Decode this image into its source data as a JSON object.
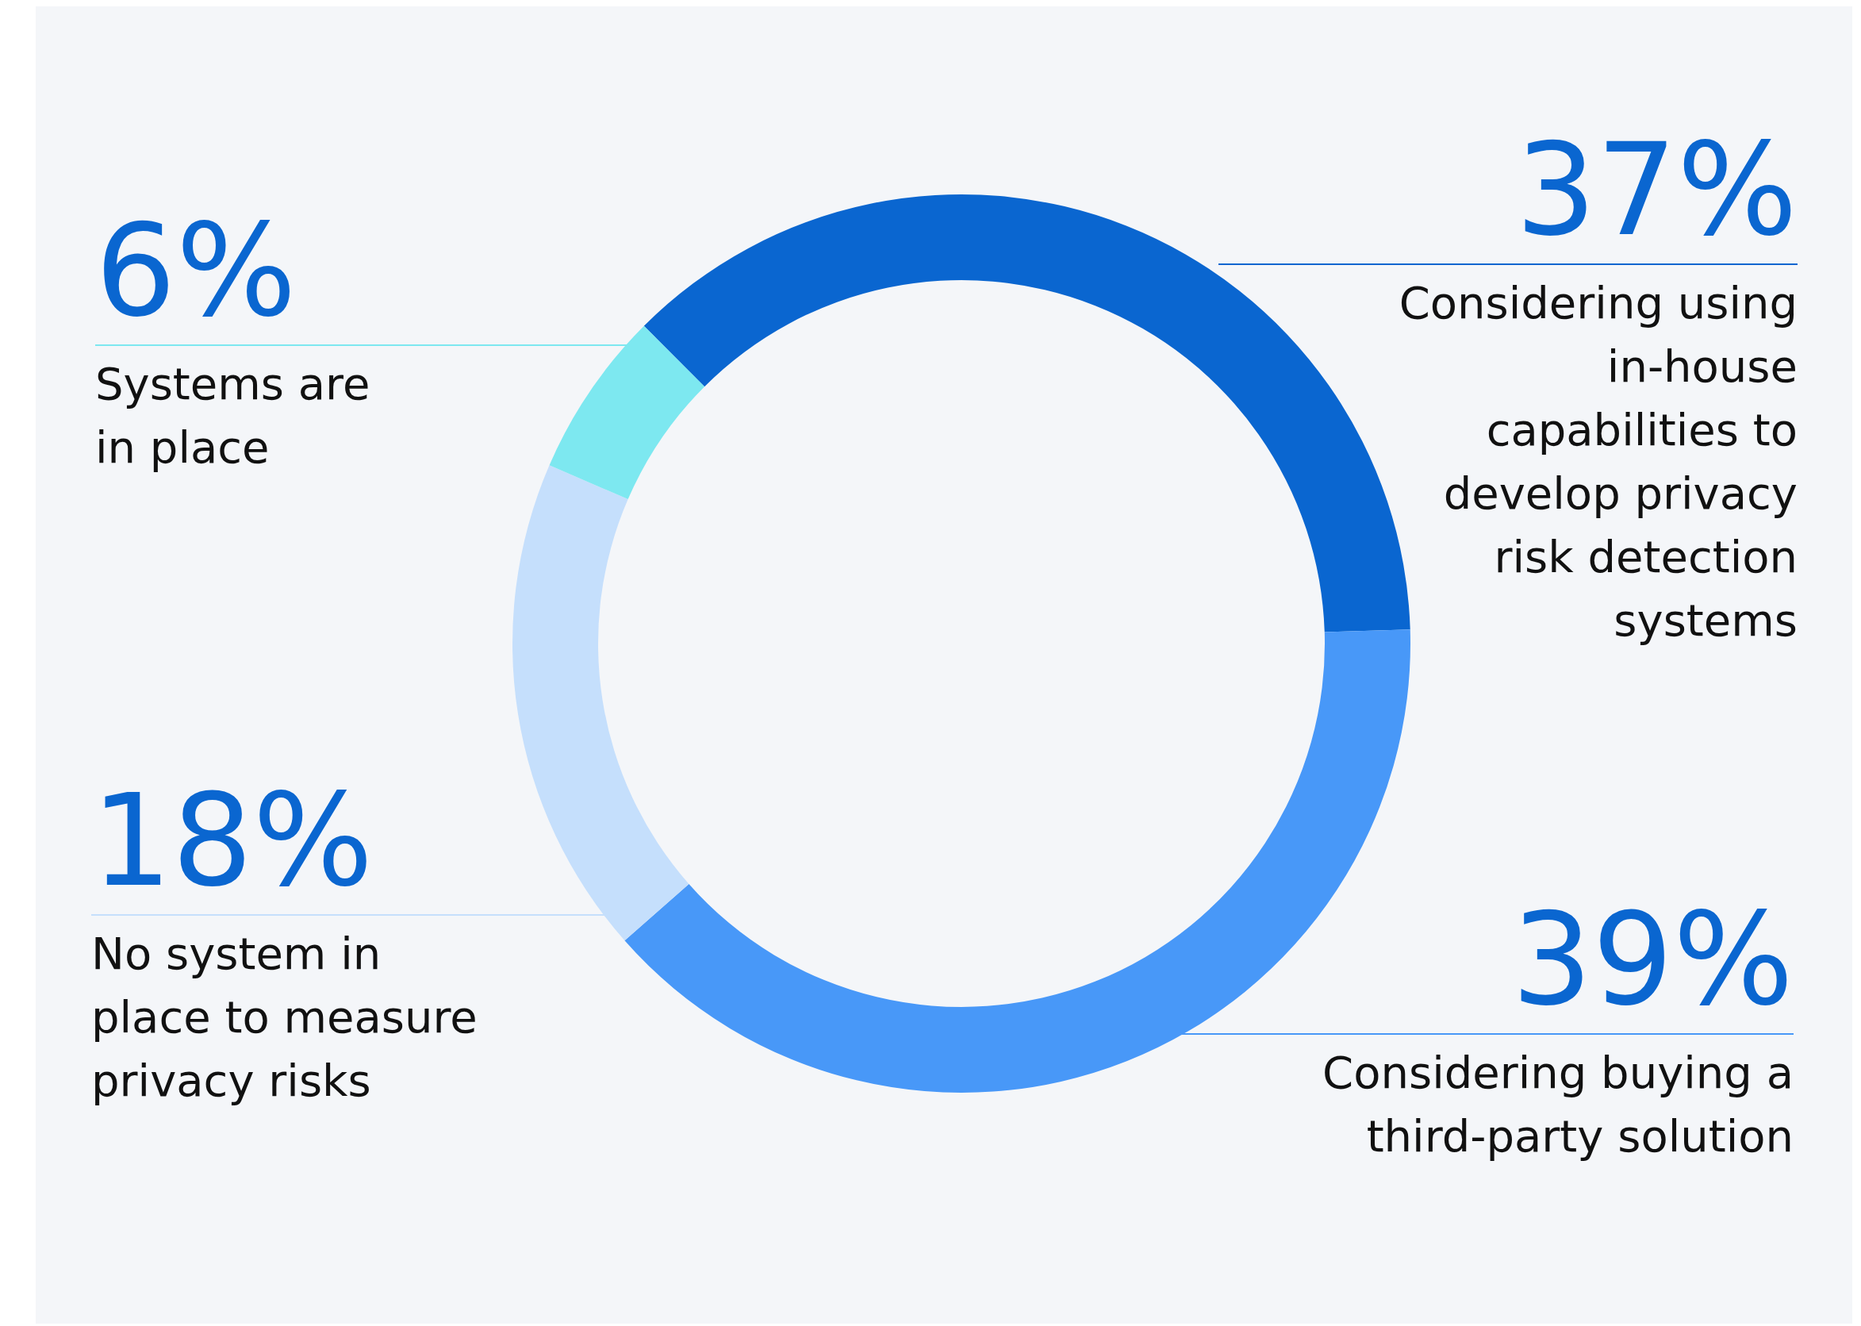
{
  "chart_data": {
    "type": "donut",
    "categories": [
      "Considering using in-house capabilities to develop privacy risk detection systems",
      "Considering buying a third-party solution",
      "No system in place to measure privacy risks",
      "Systems are in place"
    ],
    "values": [
      37,
      39,
      18,
      6
    ],
    "value_labels": [
      "37%",
      "39%",
      "18%",
      "6%"
    ],
    "colors": [
      "#0a66d0",
      "#4898f8",
      "#c5dffc",
      "#7de8f0"
    ],
    "legend": false
  }
}
